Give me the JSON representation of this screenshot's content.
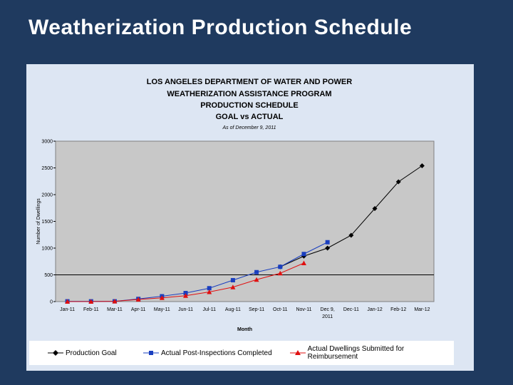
{
  "slide": {
    "title": "Weatherization Production Schedule"
  },
  "colors": {
    "goal": "#000000",
    "actual_post": "#1a3fbf",
    "actual_submitted": "#e01010",
    "plot_bg": "#c8c8c8",
    "frame_bg": "#dde6f3"
  },
  "chart_data": {
    "type": "line",
    "title_lines": [
      "LOS ANGELES DEPARTMENT OF WATER AND POWER",
      "WEATHERIZATION ASSISTANCE PROGRAM",
      "PRODUCTION SCHEDULE",
      "GOAL vs ACTUAL"
    ],
    "subtitle": "As of December 9, 2011",
    "ylabel": "Number of Dwellings",
    "xlabel": "Month",
    "ylim": [
      0,
      3000
    ],
    "yticks": [
      0,
      500,
      1000,
      1500,
      2000,
      2500,
      3000
    ],
    "reference_line": 500,
    "categories": [
      "Jan-11",
      "Feb-11",
      "Mar-11",
      "Apr-11",
      "May-11",
      "Jun-11",
      "Jul-11",
      "Aug-11",
      "Sep-11",
      "Oct-11",
      "Nov-11",
      "Dec 9, 2011",
      "Dec-11",
      "Jan-12",
      "Feb-12",
      "Mar-12"
    ],
    "category_lines": [
      [
        "Jan-11"
      ],
      [
        "Feb-11"
      ],
      [
        "Mar-11"
      ],
      [
        "Apr-11"
      ],
      [
        "May-11"
      ],
      [
        "Jun-11"
      ],
      [
        "Jul-11"
      ],
      [
        "Aug-11"
      ],
      [
        "Sep-11"
      ],
      [
        "Oct-11"
      ],
      [
        "Nov-11"
      ],
      [
        "Dec 9,",
        "2011"
      ],
      [
        "Dec-11"
      ],
      [
        "Jan-12"
      ],
      [
        "Feb-12"
      ],
      [
        "Mar-12"
      ]
    ],
    "series": [
      {
        "name": "Production Goal",
        "marker": "diamond",
        "color": "#000000",
        "values": [
          null,
          null,
          null,
          null,
          null,
          null,
          null,
          null,
          null,
          650,
          850,
          1000,
          1240,
          1740,
          2240,
          2540
        ]
      },
      {
        "name": "Actual Post-Inspections Completed",
        "marker": "square",
        "color": "#1a3fbf",
        "values": [
          5,
          5,
          5,
          50,
          100,
          160,
          250,
          400,
          550,
          650,
          890,
          1110,
          null,
          null,
          null,
          null
        ]
      },
      {
        "name": "Actual Dwellings Submitted for Reimbursement",
        "marker": "triangle",
        "color": "#e01010",
        "values": [
          0,
          0,
          5,
          40,
          70,
          110,
          180,
          270,
          410,
          530,
          720,
          null,
          null,
          null,
          null,
          null
        ]
      }
    ],
    "legend": [
      "Production Goal",
      "Actual Post-Inspections Completed",
      "Actual Dwellings Submitted for Reimbursement"
    ]
  }
}
